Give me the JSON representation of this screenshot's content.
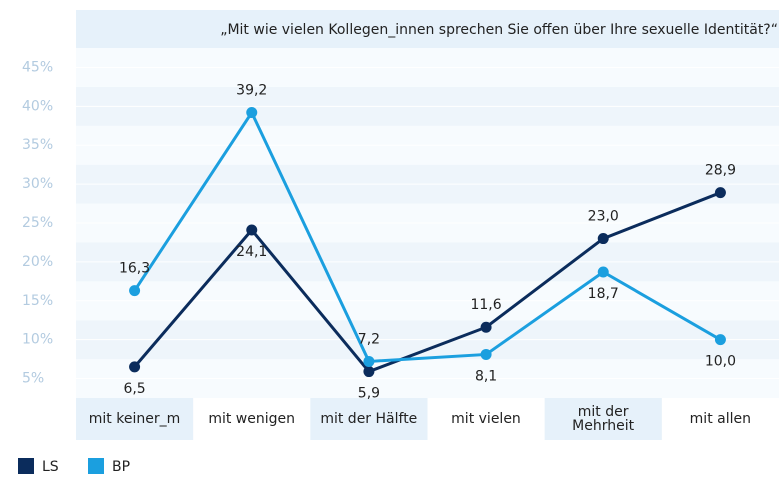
{
  "chart_data": {
    "type": "line",
    "title": "„Mit wie vielen Kollegen_innen sprechen Sie offen über Ihre sexuelle Identität?“",
    "categories": [
      "mit keiner_m",
      "mit wenigen",
      "mit der Hälfte",
      "mit vielen",
      "mit der\nMehrheit",
      "mit allen"
    ],
    "series": [
      {
        "name": "LS",
        "color": "#0b2c5c",
        "values": [
          6.5,
          24.1,
          5.9,
          11.6,
          23.0,
          28.9
        ],
        "value_labels": [
          "6,5",
          "24,1",
          "5,9",
          "11,6",
          "23,0",
          "28,9"
        ]
      },
      {
        "name": "BP",
        "color": "#1b9fdf",
        "values": [
          16.3,
          39.2,
          7.2,
          8.1,
          18.7,
          10.0
        ],
        "value_labels": [
          "16,3",
          "39,2",
          "7,2",
          "8,1",
          "18,7",
          "10,0"
        ]
      }
    ],
    "ylim": [
      2.5,
      47.5
    ],
    "yticks": [
      {
        "value": 5,
        "label": "5%"
      },
      {
        "value": 10,
        "label": "10%"
      },
      {
        "value": 15,
        "label": "15%"
      },
      {
        "value": 20,
        "label": "20%"
      },
      {
        "value": 25,
        "label": "25%"
      },
      {
        "value": 30,
        "label": "30%"
      },
      {
        "value": 35,
        "label": "35%"
      },
      {
        "value": 40,
        "label": "40%"
      },
      {
        "value": 45,
        "label": "45%"
      }
    ],
    "legend": "bottom-left"
  }
}
